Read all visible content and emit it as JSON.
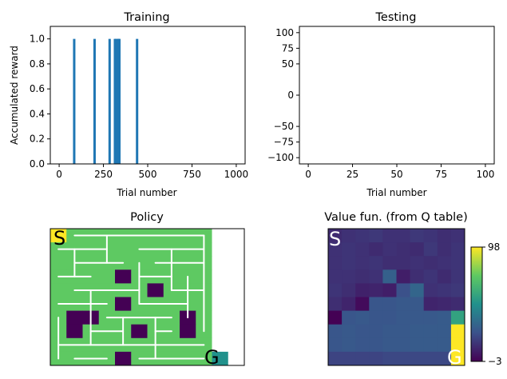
{
  "chart_data": [
    {
      "type": "bar",
      "title": "Training",
      "xlabel": "Trial number",
      "ylabel": "Accumulated reward",
      "xlim": [
        -50,
        1050
      ],
      "ylim": [
        0,
        1.1
      ],
      "xticks": [
        0,
        250,
        500,
        750,
        1000
      ],
      "yticks": [
        0.0,
        0.2,
        0.4,
        0.6,
        0.8,
        1.0
      ],
      "ytick_labels": [
        "0.0",
        "0.2",
        "0.4",
        "0.6",
        "0.8",
        "1.0"
      ],
      "bar_color": "#1f77b4",
      "success_trials": [
        85,
        200,
        285,
        315,
        320,
        330,
        335,
        340,
        440
      ],
      "success_value": 1.0
    },
    {
      "type": "bar",
      "title": "Testing",
      "xlabel": "Trial number",
      "ylabel": "",
      "xlim": [
        -5,
        105
      ],
      "ylim": [
        -110,
        110
      ],
      "xticks": [
        0,
        25,
        50,
        75,
        100
      ],
      "yticks": [
        100,
        75,
        50,
        0,
        -50,
        -75,
        -100
      ],
      "ytick_labels": [
        "100",
        "75",
        "50",
        "0",
        "−50",
        "−75",
        "−100"
      ],
      "values": []
    },
    {
      "type": "heatmap",
      "title": "Policy",
      "rows": 10,
      "cols": 12,
      "start_label": "S",
      "goal_label": "G",
      "colors": {
        "free": "#5ec962",
        "wall": "#440154",
        "start": "#fde725",
        "goal": "#21918c",
        "outside": "#ffffff",
        "arrow": "#ffffff"
      },
      "grid": [
        "S.........  ",
        "..........  ",
        "..........  ",
        "....#.....  ",
        "......#...  ",
        "....#.....  ",
        ".##.....#.  ",
        ".#...#..#.  ",
        "..........  ",
        "....#.....G "
      ]
    },
    {
      "type": "heatmap",
      "title": "Value fun. (from Q table)",
      "rows": 10,
      "cols": 10,
      "start_label": "S",
      "goal_label": "G",
      "colorbar_ticks": [
        "98",
        "−3"
      ],
      "vmin": -3,
      "vmax": 98,
      "values": [
        [
          10,
          12,
          13,
          14,
          12,
          12,
          14,
          13,
          11,
          12
        ],
        [
          12,
          13,
          12,
          10,
          12,
          11,
          10,
          14,
          11,
          13
        ],
        [
          12,
          13,
          12,
          13,
          11,
          11,
          12,
          11,
          12,
          13
        ],
        [
          12,
          12,
          11,
          12,
          28,
          6,
          11,
          13,
          10,
          13
        ],
        [
          13,
          11,
          7,
          8,
          6,
          22,
          30,
          12,
          13,
          14
        ],
        [
          11,
          8,
          0,
          24,
          24,
          25,
          25,
          8,
          9,
          10
        ],
        [
          -3,
          24,
          25,
          24,
          24,
          25,
          25,
          25,
          26,
          55
        ],
        [
          24,
          25,
          24,
          24,
          25,
          25,
          26,
          26,
          26,
          98
        ],
        [
          24,
          25,
          24,
          24,
          25,
          25,
          26,
          26,
          26,
          98
        ],
        [
          18,
          18,
          18,
          18,
          19,
          19,
          19,
          19,
          19,
          98
        ]
      ]
    }
  ]
}
